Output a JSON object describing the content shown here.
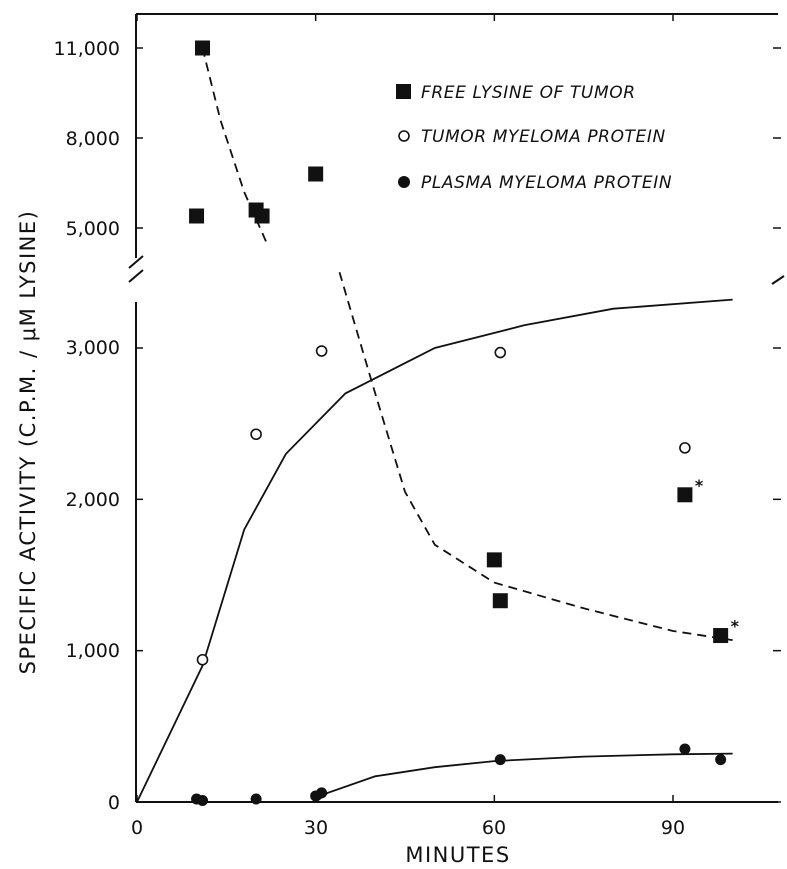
{
  "chart_data": {
    "type": "scatter",
    "xlabel": "MINUTES",
    "ylabel": "SPECIFIC ACTIVITY (C.P.M. / μM LYSINE)",
    "x_ticks": [
      "0",
      "30",
      "60",
      "90"
    ],
    "xlim": [
      0,
      110
    ],
    "y_axis_broken": true,
    "y_ticks_lower": [
      "0",
      "1,000",
      "2,000",
      "3,000"
    ],
    "y_ticks_upper": [
      "5,000",
      "8,000",
      "11,000"
    ],
    "ylim_lower": [
      0,
      3300
    ],
    "ylim_upper": [
      4000,
      11000
    ],
    "legend_placement": "top-right",
    "series": [
      {
        "name": "FREE LYSINE OF TUMOR",
        "marker": "filled-square",
        "points": [
          [
            10,
            5400
          ],
          [
            11,
            11000
          ],
          [
            20,
            5600
          ],
          [
            21,
            5400
          ],
          [
            30,
            6800
          ],
          [
            60,
            1600
          ],
          [
            61,
            1330
          ],
          [
            92,
            2030
          ],
          [
            98,
            1100
          ]
        ],
        "starred_points": [
          [
            92,
            2030
          ],
          [
            98,
            1100
          ]
        ],
        "star_label": "*",
        "curve_style": "dashed",
        "curve": [
          [
            11,
            11000
          ],
          [
            14,
            8600
          ],
          [
            18,
            6200
          ],
          [
            22,
            4400
          ],
          [
            34,
            3500
          ],
          [
            40,
            2700
          ],
          [
            45,
            2050
          ],
          [
            50,
            1700
          ],
          [
            60,
            1450
          ],
          [
            75,
            1280
          ],
          [
            90,
            1130
          ],
          [
            100,
            1070
          ]
        ]
      },
      {
        "name": "TUMOR MYELOMA PROTEIN",
        "marker": "open-circle",
        "points": [
          [
            11,
            940
          ],
          [
            20,
            2430
          ],
          [
            31,
            2980
          ],
          [
            61,
            2970
          ],
          [
            92,
            2340
          ]
        ],
        "curve_style": "solid",
        "curve": [
          [
            0,
            0
          ],
          [
            11,
            900
          ],
          [
            18,
            1800
          ],
          [
            25,
            2300
          ],
          [
            35,
            2700
          ],
          [
            50,
            3000
          ],
          [
            65,
            3150
          ],
          [
            80,
            3260
          ],
          [
            100,
            3320
          ]
        ]
      },
      {
        "name": "PLASMA MYELOMA PROTEIN",
        "marker": "filled-circle",
        "points": [
          [
            10,
            20
          ],
          [
            11,
            10
          ],
          [
            20,
            20
          ],
          [
            30,
            40
          ],
          [
            31,
            60
          ],
          [
            61,
            280
          ],
          [
            92,
            350
          ],
          [
            98,
            280
          ]
        ],
        "curve_style": "solid",
        "curve": [
          [
            0,
            0
          ],
          [
            30,
            0
          ],
          [
            32,
            60
          ],
          [
            40,
            170
          ],
          [
            50,
            230
          ],
          [
            60,
            270
          ],
          [
            75,
            300
          ],
          [
            90,
            315
          ],
          [
            100,
            320
          ]
        ]
      }
    ]
  }
}
